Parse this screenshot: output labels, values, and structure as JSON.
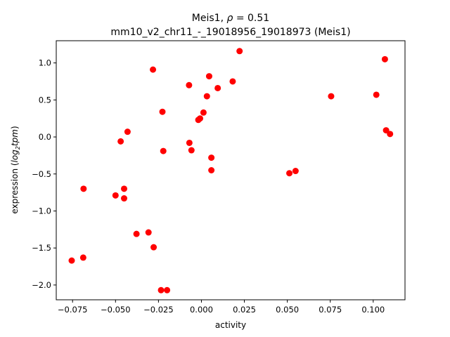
{
  "chart_data": {
    "type": "scatter",
    "title_line1_prefix": "Meis1, ",
    "title_rho_symbol": "ρ",
    "title_line1_suffix": " = 0.51",
    "title_line2": "mm10_v2_chr11_-_19018956_19018973 (Meis1)",
    "xlabel": "activity",
    "ylabel_prefix": "expression (",
    "ylabel_log": "log",
    "ylabel_sub": "2",
    "ylabel_tpm": "tpm",
    "ylabel_suffix": ")",
    "xlim": [
      -0.0845,
      0.1185
    ],
    "ylim": [
      -2.2,
      1.3
    ],
    "xticks": [
      -0.075,
      -0.05,
      -0.025,
      0.0,
      0.025,
      0.05,
      0.075,
      0.1
    ],
    "xtick_labels": [
      "−0.075",
      "−0.050",
      "−0.025",
      "0.000",
      "0.025",
      "0.050",
      "0.075",
      "0.100"
    ],
    "yticks": [
      -2.0,
      -1.5,
      -1.0,
      -0.5,
      0.0,
      0.5,
      1.0
    ],
    "ytick_labels": [
      "−2.0",
      "−1.5",
      "−1.0",
      "−0.5",
      "0.0",
      "0.5",
      "1.0"
    ],
    "grid": false,
    "marker_color": "#ff0000",
    "points": [
      {
        "x": -0.0755,
        "y": -1.67
      },
      {
        "x": -0.0688,
        "y": -1.63
      },
      {
        "x": -0.0686,
        "y": -0.7
      },
      {
        "x": -0.05,
        "y": -0.79
      },
      {
        "x": -0.047,
        "y": -0.06
      },
      {
        "x": -0.045,
        "y": -0.7
      },
      {
        "x": -0.045,
        "y": -0.83
      },
      {
        "x": -0.043,
        "y": 0.07
      },
      {
        "x": -0.0378,
        "y": -1.31
      },
      {
        "x": -0.0308,
        "y": -1.29
      },
      {
        "x": -0.0282,
        "y": 0.91
      },
      {
        "x": -0.0278,
        "y": -1.49
      },
      {
        "x": -0.0235,
        "y": -2.07
      },
      {
        "x": -0.0227,
        "y": 0.34
      },
      {
        "x": -0.0222,
        "y": -0.19
      },
      {
        "x": -0.02,
        "y": -2.07
      },
      {
        "x": -0.0072,
        "y": 0.7
      },
      {
        "x": -0.007,
        "y": -0.08
      },
      {
        "x": -0.0058,
        "y": -0.18
      },
      {
        "x": -0.0018,
        "y": 0.23
      },
      {
        "x": -0.0008,
        "y": 0.25
      },
      {
        "x": 0.0012,
        "y": 0.33
      },
      {
        "x": 0.0032,
        "y": 0.55
      },
      {
        "x": 0.0045,
        "y": 0.82
      },
      {
        "x": 0.0058,
        "y": -0.28
      },
      {
        "x": 0.0058,
        "y": -0.45
      },
      {
        "x": 0.0095,
        "y": 0.66
      },
      {
        "x": 0.0182,
        "y": 0.75
      },
      {
        "x": 0.0222,
        "y": 1.16
      },
      {
        "x": 0.0512,
        "y": -0.49
      },
      {
        "x": 0.0548,
        "y": -0.46
      },
      {
        "x": 0.0755,
        "y": 0.55
      },
      {
        "x": 0.1018,
        "y": 0.57
      },
      {
        "x": 0.1068,
        "y": 1.05
      },
      {
        "x": 0.1075,
        "y": 0.09
      },
      {
        "x": 0.1098,
        "y": 0.04
      }
    ]
  }
}
